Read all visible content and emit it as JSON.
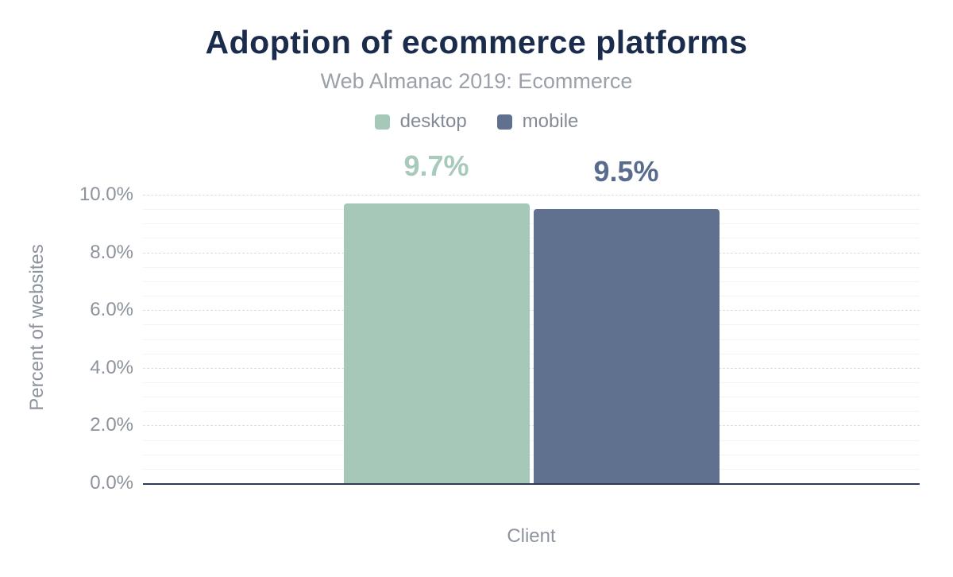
{
  "header": {
    "title": "Adoption of ecommerce platforms",
    "subtitle": "Web Almanac 2019: Ecommerce"
  },
  "chart_data": {
    "type": "bar",
    "title": "Adoption of ecommerce platforms",
    "subtitle": "Web Almanac 2019: Ecommerce",
    "categories": [
      "Client"
    ],
    "series": [
      {
        "name": "desktop",
        "values": [
          9.7
        ],
        "data_labels": [
          "9.7%"
        ],
        "color": "#a5c8b8",
        "label_color": "#a8cabb"
      },
      {
        "name": "mobile",
        "values": [
          9.5
        ],
        "data_labels": [
          "9.5%"
        ],
        "color": "#5f718e",
        "label_color": "#5a6c8c"
      }
    ],
    "xlabel": "Client",
    "ylabel": "Percent of websites",
    "ylim": [
      0,
      10
    ],
    "yticks": [
      {
        "value": 0,
        "label": "0.0%"
      },
      {
        "value": 2,
        "label": "2.0%"
      },
      {
        "value": 4,
        "label": "4.0%"
      },
      {
        "value": 6,
        "label": "6.0%"
      },
      {
        "value": 8,
        "label": "8.0%"
      },
      {
        "value": 10,
        "label": "10.0%"
      }
    ],
    "minor_tick_step": 0.5,
    "grid": "horizontal",
    "legend_position": "top"
  },
  "colors": {
    "title": "#1b2b4b",
    "subtitle": "#9aa1a9",
    "legend_text": "#848b96",
    "axis_text": "#8d939d",
    "baseline": "#2e3d54",
    "grid_major": "#dcdcdc",
    "grid_minor": "#f4f4f4",
    "background": "#ffffff"
  }
}
